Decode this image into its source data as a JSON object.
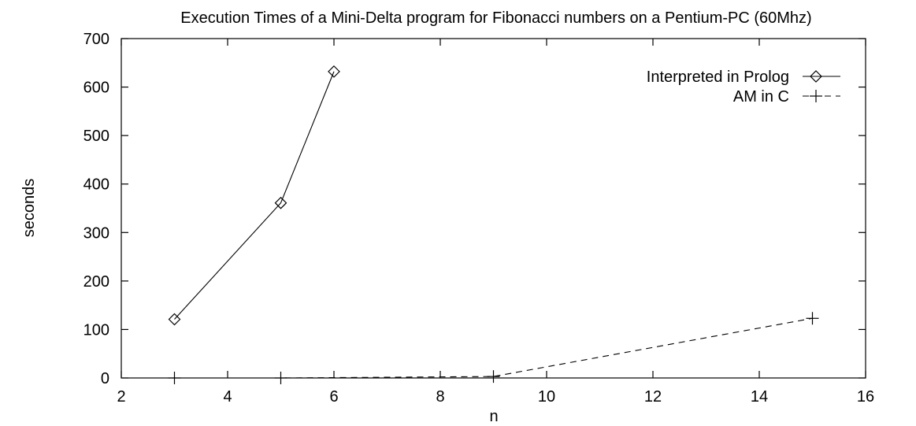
{
  "chart_data": {
    "type": "line",
    "title": "Execution Times of a Mini-Delta program for Fibonacci numbers on a Pentium-PC (60Mhz)",
    "xlabel": "n",
    "ylabel": "seconds",
    "xlim": [
      2,
      16
    ],
    "ylim": [
      0,
      700
    ],
    "xticks": [
      2,
      4,
      6,
      8,
      10,
      12,
      14,
      16
    ],
    "yticks": [
      0,
      100,
      200,
      300,
      400,
      500,
      600,
      700
    ],
    "grid": false,
    "legend_position": "top-right",
    "series": [
      {
        "name": "Interpreted in Prolog",
        "marker": "diamond",
        "line": "solid",
        "x": [
          3,
          5,
          6
        ],
        "y": [
          121,
          361,
          632
        ]
      },
      {
        "name": "AM in C",
        "marker": "plus",
        "line": "dashed",
        "x": [
          3,
          5,
          9,
          15
        ],
        "y": [
          0,
          0,
          3,
          123
        ]
      }
    ]
  }
}
